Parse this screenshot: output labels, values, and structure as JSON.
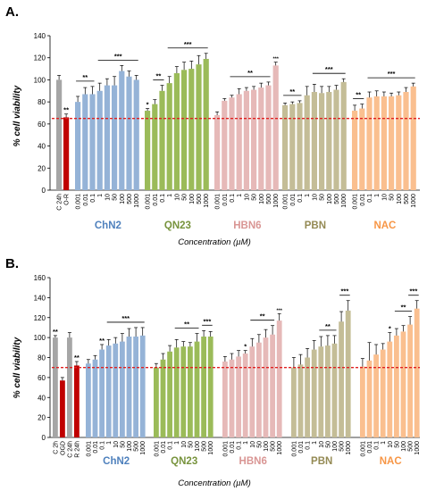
{
  "chart_data": [
    {
      "type": "bar",
      "panel": "A.",
      "ylabel": "% cell viability",
      "xlabel": "Concentration (µM)",
      "ylim": [
        0,
        140
      ],
      "yticks": [
        0,
        20,
        40,
        60,
        80,
        100,
        120,
        140
      ],
      "reference_line": 65,
      "reference_color": "#e02020",
      "controls": [
        {
          "label": "C 24h",
          "value": 100,
          "err": 4,
          "color": "#a6a6a6",
          "star": "",
          "star_color": "#000000"
        },
        {
          "label": "O-R",
          "value": 66,
          "err": 3,
          "color": "#c00000",
          "star": "**",
          "star_color": "#e02020"
        }
      ],
      "concentrations": [
        "0.001",
        "0.01",
        "0.1",
        "1",
        "10",
        "50",
        "100",
        "500",
        "1000"
      ],
      "groups": [
        {
          "name": "ChN2",
          "color": "#95b3d7",
          "label_color": "#4f81bd",
          "values": [
            80,
            87,
            87,
            90,
            95,
            95,
            108,
            103,
            100
          ],
          "errors": [
            5,
            6,
            7,
            7,
            6,
            8,
            5,
            5,
            4
          ],
          "brackets": [
            {
              "from": 0,
              "to": 2,
              "stars": "**"
            },
            {
              "from": 3,
              "to": 8,
              "stars": "***"
            }
          ],
          "bar_stars": []
        },
        {
          "name": "QN23",
          "color": "#9bbb59",
          "label_color": "#77933c",
          "values": [
            72,
            78,
            90,
            97,
            106,
            109,
            110,
            114,
            119
          ],
          "errors": [
            2,
            4,
            5,
            6,
            6,
            7,
            7,
            8,
            5
          ],
          "brackets": [
            {
              "from": 1,
              "to": 2,
              "stars": "**"
            },
            {
              "from": 3,
              "to": 8,
              "stars": "***"
            }
          ],
          "bar_stars": [
            {
              "index": 0,
              "stars": "*"
            }
          ]
        },
        {
          "name": "HBN6",
          "color": "#e6b9b8",
          "label_color": "#d99694",
          "values": [
            68,
            81,
            84,
            87,
            90,
            91,
            93,
            95,
            113
          ],
          "errors": [
            3,
            2,
            2,
            5,
            3,
            3,
            4,
            3,
            3
          ],
          "brackets": [
            {
              "from": 2,
              "to": 7,
              "stars": "**"
            }
          ],
          "bar_stars": [
            {
              "index": 8,
              "stars": "***"
            }
          ]
        },
        {
          "name": "PBN",
          "color": "#c4bd97",
          "label_color": "#948a54",
          "values": [
            77,
            78,
            79,
            86,
            89,
            88,
            89,
            91,
            98
          ],
          "errors": [
            2,
            2,
            2,
            8,
            7,
            6,
            5,
            4,
            3
          ],
          "brackets": [
            {
              "from": 0,
              "to": 2,
              "stars": "**"
            },
            {
              "from": 4,
              "to": 8,
              "stars": "***"
            }
          ],
          "bar_stars": []
        },
        {
          "name": "NAC",
          "color": "#fabf8f",
          "label_color": "#f79646",
          "values": [
            72,
            74,
            84,
            85,
            85,
            85,
            86,
            89,
            94
          ],
          "errors": [
            5,
            4,
            5,
            5,
            4,
            3,
            3,
            4,
            3
          ],
          "brackets": [
            {
              "from": 0,
              "to": 1,
              "stars": "**"
            },
            {
              "from": 2,
              "to": 8,
              "stars": "***"
            }
          ],
          "bar_stars": []
        }
      ]
    },
    {
      "type": "bar",
      "panel": "B.",
      "ylabel": "% cell viability",
      "xlabel": "Concentration (µM)",
      "ylim": [
        0,
        160
      ],
      "yticks": [
        0,
        20,
        40,
        60,
        80,
        100,
        120,
        140,
        160
      ],
      "reference_line": 70,
      "reference_color": "#e02020",
      "controls": [
        {
          "label": "C 2h",
          "value": 100,
          "err": 2,
          "color": "#a6a6a6",
          "star": "**",
          "star_color": "#e02020"
        },
        {
          "label": "OGD",
          "value": 57,
          "err": 3,
          "color": "#c00000",
          "star": "",
          "star_color": "#000000"
        },
        {
          "label": "C 24h",
          "value": 100,
          "err": 5,
          "color": "#a6a6a6",
          "star": "",
          "star_color": "#000000"
        },
        {
          "label": "R 24h",
          "value": 72,
          "err": 4,
          "color": "#c00000",
          "star": "**",
          "star_color": "#e02020"
        }
      ],
      "concentrations": [
        "0.001",
        "0.01",
        "0.1",
        "1",
        "10",
        "50",
        "100",
        "500",
        "1000"
      ],
      "groups": [
        {
          "name": "ChN2",
          "color": "#95b3d7",
          "label_color": "#4f81bd",
          "values": [
            74,
            78,
            88,
            92,
            94,
            96,
            101,
            101,
            102
          ],
          "errors": [
            4,
            4,
            5,
            6,
            6,
            8,
            8,
            9,
            8
          ],
          "brackets": [
            {
              "from": 3,
              "to": 8,
              "stars": "***"
            }
          ],
          "bar_stars": [
            {
              "index": 2,
              "stars": "**"
            }
          ]
        },
        {
          "name": "QN23",
          "color": "#9bbb59",
          "label_color": "#77933c",
          "values": [
            70,
            78,
            86,
            90,
            91,
            91,
            96,
            101,
            101
          ],
          "errors": [
            4,
            6,
            6,
            8,
            5,
            4,
            8,
            6,
            5
          ],
          "brackets": [
            {
              "from": 3,
              "to": 6,
              "stars": "**"
            },
            {
              "from": 7,
              "to": 8,
              "stars": "***"
            }
          ],
          "bar_stars": []
        },
        {
          "name": "HBN6",
          "color": "#e6b9b8",
          "label_color": "#d99694",
          "values": [
            76,
            78,
            81,
            84,
            91,
            95,
            100,
            103,
            117
          ],
          "errors": [
            5,
            6,
            6,
            3,
            8,
            8,
            8,
            9,
            7
          ],
          "brackets": [
            {
              "from": 4,
              "to": 7,
              "stars": "**"
            }
          ],
          "bar_stars": [
            {
              "index": 3,
              "stars": "*"
            },
            {
              "index": 8,
              "stars": "***"
            }
          ]
        },
        {
          "name": "PBN",
          "color": "#c4bd97",
          "label_color": "#948a54",
          "values": [
            70,
            73,
            80,
            88,
            91,
            92,
            94,
            116,
            127
          ],
          "errors": [
            10,
            10,
            9,
            9,
            10,
            10,
            8,
            10,
            10
          ],
          "brackets": [
            {
              "from": 4,
              "to": 6,
              "stars": "**"
            },
            {
              "from": 7,
              "to": 8,
              "stars": "***"
            }
          ],
          "bar_stars": []
        },
        {
          "name": "NAC",
          "color": "#fabf8f",
          "label_color": "#f79646",
          "values": [
            71,
            77,
            83,
            88,
            96,
            102,
            106,
            113,
            129
          ],
          "errors": [
            8,
            18,
            10,
            6,
            9,
            7,
            6,
            8,
            8
          ],
          "brackets": [
            {
              "from": 5,
              "to": 7,
              "stars": "**"
            },
            {
              "from": 7,
              "to": 8,
              "stars": "***"
            }
          ],
          "bar_stars": [
            {
              "index": 4,
              "stars": "*"
            }
          ]
        }
      ]
    }
  ]
}
